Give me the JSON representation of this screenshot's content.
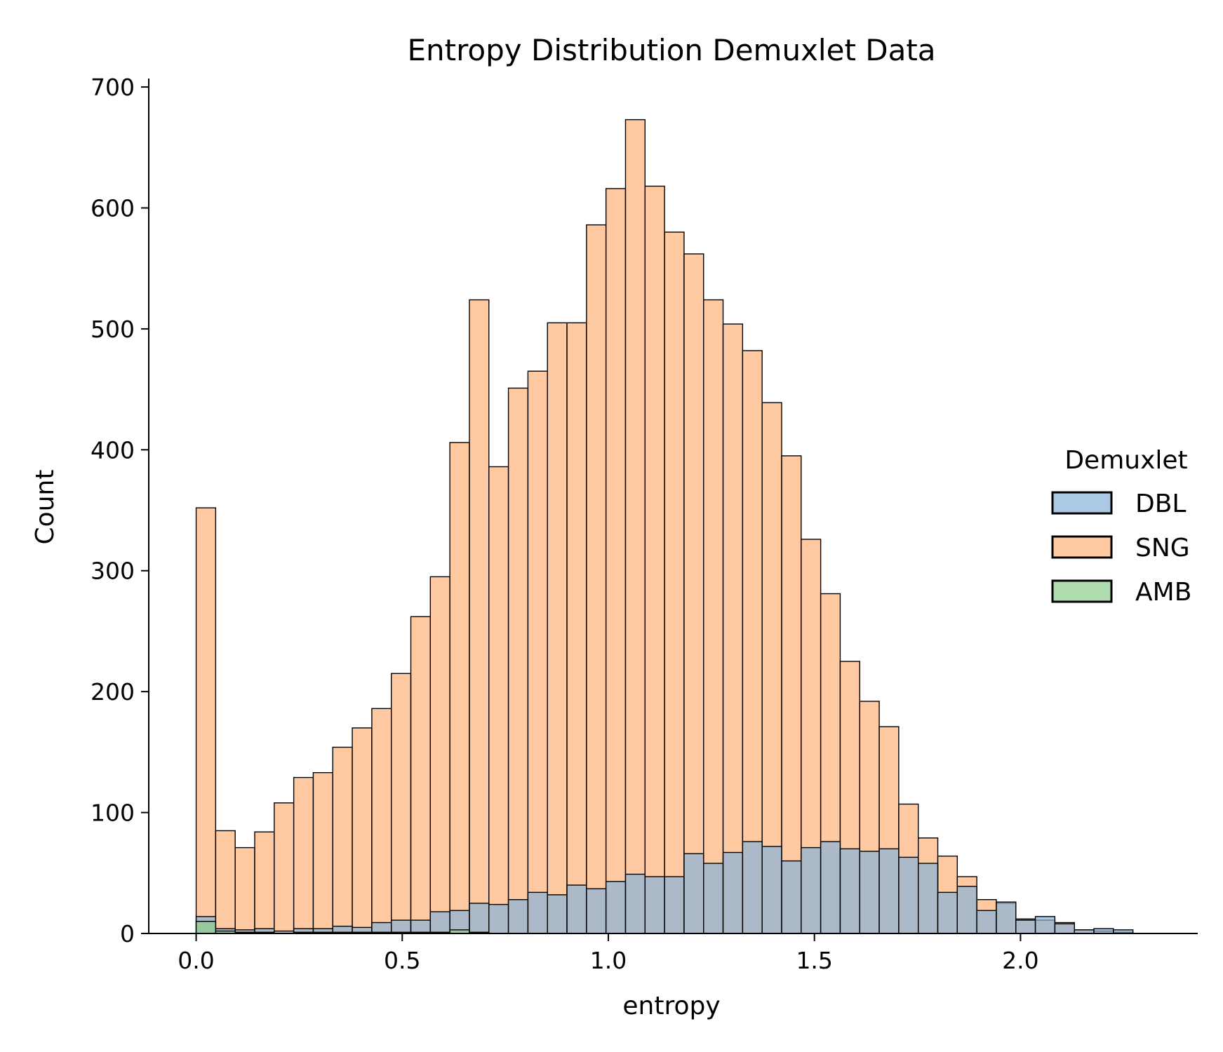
{
  "chart_data": {
    "type": "bar",
    "title": "Entropy Distribution Demuxlet Data",
    "xlabel": "entropy",
    "ylabel": "Count",
    "xlim": [
      -0.115,
      2.43
    ],
    "ylim": [
      0,
      707
    ],
    "xticks": [
      0.0,
      0.5,
      1.0,
      1.5,
      2.0
    ],
    "xtick_labels": [
      "0.0",
      "0.5",
      "1.0",
      "1.5",
      "2.0"
    ],
    "yticks": [
      0,
      100,
      200,
      300,
      400,
      500,
      600,
      700
    ],
    "ytick_labels": [
      "0",
      "100",
      "200",
      "300",
      "400",
      "500",
      "600",
      "700"
    ],
    "grid": false,
    "legend": {
      "title": "Demuxlet",
      "placement": "center-right",
      "entries": [
        "DBL",
        "SNG",
        "AMB"
      ]
    },
    "bin_start": 0.0,
    "bin_width": 0.04735,
    "series": [
      {
        "name": "SNG",
        "color": "#ffb47a",
        "values": [
          352,
          85,
          71,
          84,
          108,
          129,
          133,
          154,
          170,
          186,
          215,
          262,
          295,
          406,
          524,
          386,
          451,
          465,
          505,
          505,
          586,
          616,
          673,
          618,
          580,
          562,
          524,
          504,
          482,
          439,
          395,
          326,
          281,
          225,
          192,
          171,
          107,
          79,
          64,
          47,
          28,
          25,
          12,
          11,
          9,
          3,
          2,
          1
        ]
      },
      {
        "name": "DBL",
        "color": "#88b2d8",
        "values": [
          14,
          4,
          3,
          4,
          2,
          4,
          4,
          6,
          5,
          9,
          11,
          11,
          18,
          19,
          25,
          24,
          28,
          34,
          32,
          40,
          37,
          43,
          49,
          47,
          47,
          66,
          58,
          67,
          76,
          72,
          60,
          71,
          76,
          70,
          68,
          70,
          63,
          58,
          34,
          39,
          19,
          26,
          11,
          14,
          8,
          3,
          4,
          3
        ]
      },
      {
        "name": "AMB",
        "color": "#8fce8f",
        "values": [
          10,
          2,
          1,
          1,
          0,
          1,
          1,
          1,
          1,
          1,
          1,
          1,
          1,
          3,
          1,
          0,
          0,
          0,
          0,
          0,
          0,
          0,
          0,
          0,
          0,
          0,
          0,
          0,
          0,
          0,
          0,
          0,
          0,
          0,
          0,
          0,
          0,
          0,
          0,
          0,
          0,
          0,
          0,
          0,
          0,
          0,
          0,
          0
        ]
      }
    ]
  }
}
